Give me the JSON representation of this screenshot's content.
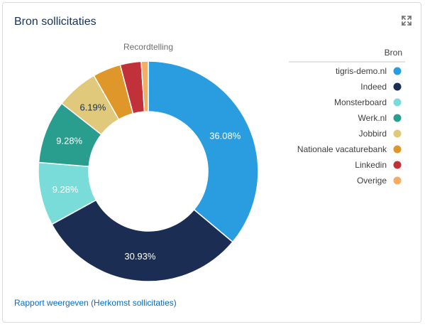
{
  "card": {
    "title": "Bron sollicitaties",
    "expand_icon": "expand-icon",
    "report_link": "Rapport weergeven (Herkomst sollicitaties)"
  },
  "chart_data": {
    "type": "pie",
    "subtype": "donut",
    "title": "Recordtelling",
    "legend_title": "Bron",
    "legend_position": "right",
    "categories": [
      "tigris-demo.nl",
      "Indeed",
      "Monsterboard",
      "Werk.nl",
      "Jobbird",
      "Nationale vacaturebank",
      "Linkedin",
      "Overige"
    ],
    "values": [
      36.08,
      30.93,
      9.28,
      9.28,
      6.19,
      4.12,
      3.09,
      1.03
    ],
    "value_labels": [
      "36.08%",
      "30.93%",
      "9.28%",
      "9.28%",
      "6.19%",
      "",
      "",
      ""
    ],
    "colors": [
      "#2a9de0",
      "#1b2d52",
      "#7adcd8",
      "#2a9e8e",
      "#e0c97a",
      "#e0972a",
      "#c0313a",
      "#f5ac63"
    ],
    "label_colors": [
      "#ffffff",
      "#ffffff",
      "#ffffff",
      "#ffffff",
      "#16325c",
      "#ffffff",
      "#ffffff",
      "#ffffff"
    ]
  }
}
